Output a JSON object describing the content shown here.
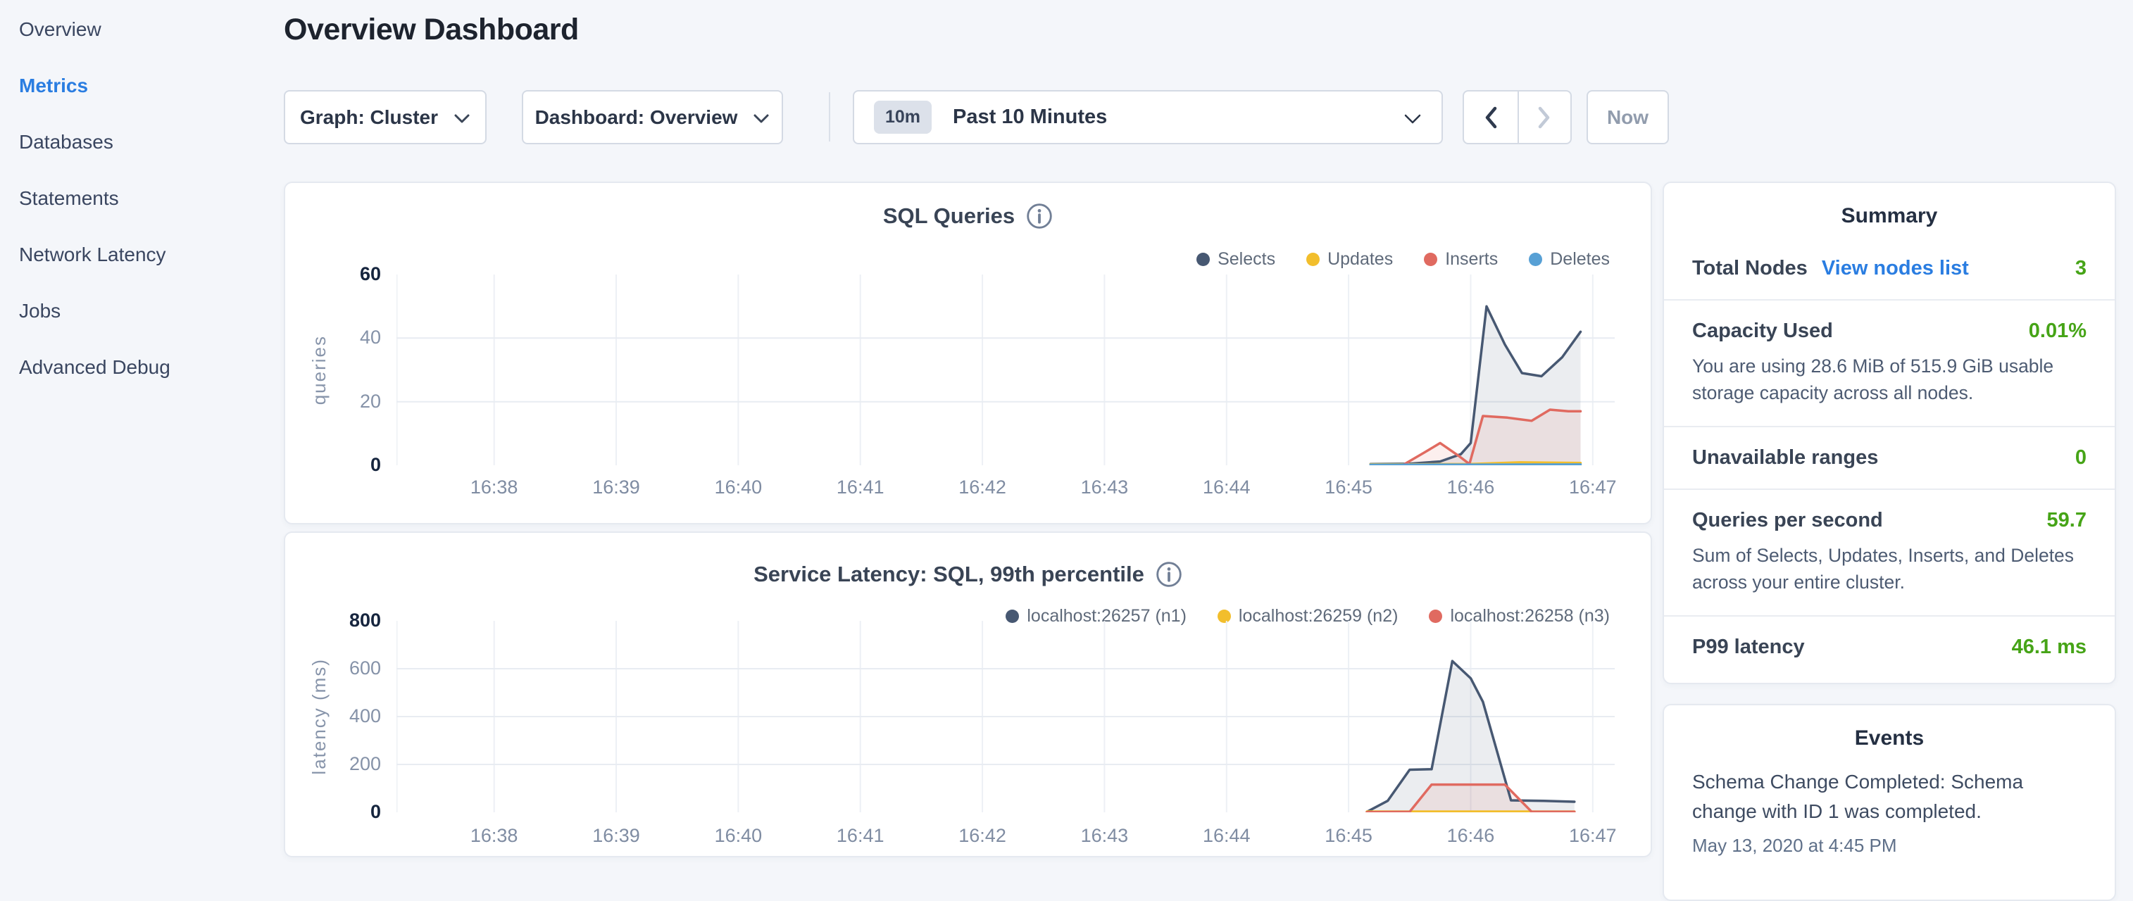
{
  "sidebar": {
    "items": [
      {
        "label": "Overview",
        "active": false
      },
      {
        "label": "Metrics",
        "active": true
      },
      {
        "label": "Databases",
        "active": false
      },
      {
        "label": "Statements",
        "active": false
      },
      {
        "label": "Network Latency",
        "active": false
      },
      {
        "label": "Jobs",
        "active": false
      },
      {
        "label": "Advanced Debug",
        "active": false
      }
    ]
  },
  "header": {
    "title": "Overview Dashboard"
  },
  "controls": {
    "graph_dropdown": "Graph: Cluster",
    "dashboard_dropdown": "Dashboard: Overview",
    "range_badge": "10m",
    "range_label": "Past 10 Minutes",
    "now_label": "Now"
  },
  "summary": {
    "title": "Summary",
    "rows": [
      {
        "label": "Total Nodes",
        "link": "View nodes list",
        "value": "3",
        "desc": ""
      },
      {
        "label": "Capacity Used",
        "link": "",
        "value": "0.01%",
        "desc": "You are using 28.6 MiB of 515.9 GiB usable storage capacity across all nodes."
      },
      {
        "label": "Unavailable ranges",
        "link": "",
        "value": "0",
        "desc": ""
      },
      {
        "label": "Queries per second",
        "link": "",
        "value": "59.7",
        "desc": "Sum of Selects, Updates, Inserts, and Deletes across your entire cluster."
      },
      {
        "label": "P99 latency",
        "link": "",
        "value": "46.1 ms",
        "desc": ""
      }
    ]
  },
  "events": {
    "title": "Events",
    "items": [
      {
        "message": "Schema Change Completed: Schema change with ID 1 was completed.",
        "date": "May 13, 2020 at 4:45 PM"
      }
    ]
  },
  "colors": {
    "accent_blue": "#2a7de1",
    "success_green": "#46a417",
    "series_navy": "#475872",
    "series_yellow": "#f2be2c",
    "series_red": "#e06a60",
    "series_blue": "#57a0d5"
  },
  "chart_data": [
    {
      "type": "area",
      "title": "SQL Queries",
      "ylabel": "queries",
      "xlabel": "",
      "grid": true,
      "legend_position": "top-right",
      "xlim": [
        37.2,
        47.18
      ],
      "ylim": [
        0,
        60
      ],
      "yticks": [
        0,
        20,
        40,
        60
      ],
      "xticks": [
        38,
        39,
        40,
        41,
        42,
        43,
        44,
        45,
        46,
        47
      ],
      "xtick_labels": [
        "16:38",
        "16:39",
        "16:40",
        "16:41",
        "16:42",
        "16:43",
        "16:44",
        "16:45",
        "16:46",
        "16:47"
      ],
      "series": [
        {
          "name": "Selects",
          "color": "#475872",
          "fill": true,
          "points": [
            [
              45.18,
              0.4
            ],
            [
              45.5,
              0.5
            ],
            [
              45.75,
              1.2
            ],
            [
              45.92,
              3.5
            ],
            [
              46.0,
              7
            ],
            [
              46.13,
              50
            ],
            [
              46.28,
              38
            ],
            [
              46.42,
              29
            ],
            [
              46.58,
              28
            ],
            [
              46.75,
              34
            ],
            [
              46.9,
              42
            ]
          ]
        },
        {
          "name": "Updates",
          "color": "#f2be2c",
          "fill": false,
          "points": [
            [
              45.18,
              0.3
            ],
            [
              45.6,
              0.3
            ],
            [
              46.0,
              0.4
            ],
            [
              46.4,
              0.9
            ],
            [
              46.9,
              0.7
            ]
          ]
        },
        {
          "name": "Inserts",
          "color": "#e06a60",
          "fill": true,
          "points": [
            [
              45.45,
              0.2
            ],
            [
              45.62,
              4
            ],
            [
              45.75,
              7
            ],
            [
              45.9,
              3
            ],
            [
              45.99,
              0.4
            ],
            [
              46.1,
              15.5
            ],
            [
              46.3,
              15
            ],
            [
              46.5,
              14
            ],
            [
              46.65,
              17.5
            ],
            [
              46.8,
              17
            ],
            [
              46.9,
              17
            ]
          ]
        },
        {
          "name": "Deletes",
          "color": "#57a0d5",
          "fill": false,
          "points": [
            [
              45.18,
              0.15
            ],
            [
              46.0,
              0.2
            ],
            [
              46.9,
              0.25
            ]
          ]
        }
      ]
    },
    {
      "type": "area",
      "title": "Service Latency: SQL, 99th percentile",
      "ylabel": "latency (ms)",
      "xlabel": "",
      "grid": true,
      "legend_position": "top-right",
      "xlim": [
        37.2,
        47.18
      ],
      "ylim": [
        0,
        800
      ],
      "yticks": [
        0,
        200,
        400,
        600,
        800
      ],
      "xticks": [
        38,
        39,
        40,
        41,
        42,
        43,
        44,
        45,
        46,
        47
      ],
      "xtick_labels": [
        "16:38",
        "16:39",
        "16:40",
        "16:41",
        "16:42",
        "16:43",
        "16:44",
        "16:45",
        "16:46",
        "16:47"
      ],
      "series": [
        {
          "name": "localhost:26257 (n1)",
          "color": "#475872",
          "fill": true,
          "points": [
            [
              45.15,
              2
            ],
            [
              45.32,
              48
            ],
            [
              45.5,
              178
            ],
            [
              45.68,
              180
            ],
            [
              45.85,
              632
            ],
            [
              46.0,
              560
            ],
            [
              46.1,
              462
            ],
            [
              46.33,
              50
            ],
            [
              46.6,
              48
            ],
            [
              46.85,
              44
            ]
          ]
        },
        {
          "name": "localhost:26259 (n2)",
          "color": "#f2be2c",
          "fill": false,
          "points": [
            [
              45.15,
              3
            ],
            [
              46.0,
              3
            ],
            [
              46.85,
              3
            ]
          ]
        },
        {
          "name": "localhost:26258 (n3)",
          "color": "#e06a60",
          "fill": true,
          "points": [
            [
              45.15,
              1
            ],
            [
              45.5,
              2
            ],
            [
              45.68,
              116
            ],
            [
              46.28,
              116
            ],
            [
              46.5,
              2
            ],
            [
              46.85,
              2
            ]
          ]
        }
      ]
    }
  ]
}
